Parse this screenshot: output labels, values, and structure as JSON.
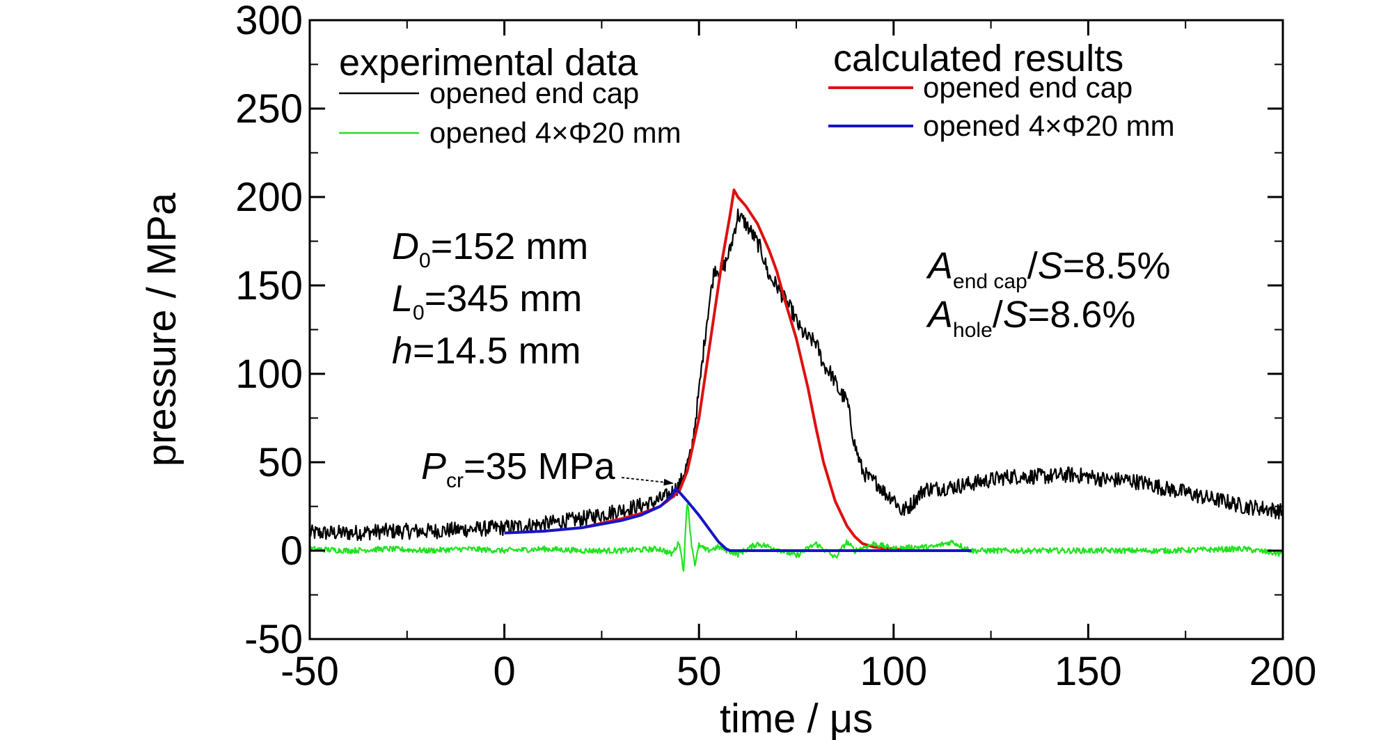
{
  "chart_data": {
    "type": "line",
    "xlabel": "time / μs",
    "ylabel": "pressure / MPa",
    "xlim": [
      -50,
      200
    ],
    "ylim": [
      -50,
      300
    ],
    "xticks": [
      -50,
      0,
      50,
      100,
      150,
      200
    ],
    "yticks": [
      -50,
      0,
      50,
      100,
      150,
      200,
      250,
      300
    ],
    "xtick_labels": [
      "-50",
      "0",
      "50",
      "100",
      "150",
      "200"
    ],
    "ytick_labels": [
      "-50",
      "0",
      "50",
      "100",
      "150",
      "200",
      "250",
      "300"
    ],
    "grid": false,
    "legend_groups": [
      {
        "heading": "experimental data",
        "entries": [
          "opened end cap",
          "opened 4×Φ20 mm"
        ]
      },
      {
        "heading": "calculated results",
        "entries": [
          "opened end cap",
          "opened 4×Φ20 mm"
        ]
      }
    ],
    "series": [
      {
        "name": "opened end cap",
        "group": "experimental data",
        "color": "#000000",
        "noisy": true,
        "x": [
          -50,
          -40,
          -30,
          -20,
          -10,
          0,
          10,
          20,
          30,
          38,
          42,
          45,
          48,
          50,
          52,
          54,
          56,
          58,
          59,
          60,
          62,
          64,
          66,
          68,
          70,
          72,
          74,
          76,
          78,
          80,
          82,
          84,
          86,
          88,
          90,
          92,
          94,
          96,
          98,
          100,
          102,
          104,
          106,
          108,
          110,
          115,
          120,
          125,
          130,
          135,
          140,
          145,
          150,
          155,
          160,
          165,
          170,
          175,
          180,
          185,
          190,
          195,
          200
        ],
        "y": [
          10,
          10,
          11,
          11,
          12,
          13,
          15,
          18,
          23,
          27,
          31,
          37,
          55,
          90,
          130,
          160,
          158,
          170,
          180,
          190,
          185,
          178,
          170,
          155,
          150,
          142,
          135,
          125,
          120,
          118,
          105,
          100,
          90,
          85,
          60,
          45,
          40,
          38,
          32,
          30,
          22,
          25,
          30,
          35,
          35,
          36,
          38,
          40,
          42,
          42,
          42,
          43,
          42,
          40,
          40,
          38,
          35,
          33,
          30,
          28,
          25,
          24,
          22
        ]
      },
      {
        "name": "opened 4×Φ20 mm",
        "group": "experimental data",
        "color": "#1fe31f",
        "noisy": true,
        "x": [
          -50,
          -40,
          -30,
          -20,
          -10,
          0,
          10,
          20,
          30,
          40,
          43,
          45,
          46,
          47,
          48,
          49,
          50,
          52,
          55,
          60,
          65,
          70,
          75,
          80,
          85,
          88,
          90,
          95,
          100,
          105,
          110,
          115,
          120,
          130,
          150,
          170,
          190,
          200
        ],
        "y": [
          1,
          0,
          1,
          0,
          1,
          0,
          1,
          0,
          0,
          1,
          -2,
          5,
          -12,
          30,
          5,
          -8,
          3,
          0,
          2,
          -2,
          4,
          1,
          -3,
          4,
          -4,
          5,
          0,
          4,
          1,
          2,
          2,
          5,
          0,
          0,
          0,
          0,
          1,
          -2
        ]
      },
      {
        "name": "opened end cap",
        "group": "calculated results",
        "color": "#dd1111",
        "noisy": false,
        "x": [
          0,
          10,
          20,
          30,
          35,
          40,
          43,
          45,
          47,
          50,
          53,
          56,
          58,
          59,
          60,
          62,
          65,
          68,
          70,
          72,
          75,
          78,
          80,
          82,
          85,
          88,
          90,
          92,
          95,
          100,
          105,
          110,
          115,
          120
        ],
        "y": [
          10,
          11,
          13,
          18,
          21,
          25,
          30,
          34,
          45,
          75,
          120,
          165,
          190,
          204,
          200,
          195,
          185,
          170,
          158,
          142,
          120,
          92,
          70,
          50,
          28,
          14,
          8,
          4,
          2,
          1,
          0,
          0,
          0,
          0
        ]
      },
      {
        "name": "opened 4×Φ20 mm",
        "group": "calculated results",
        "color": "#1515c8",
        "noisy": false,
        "x": [
          0,
          10,
          20,
          30,
          35,
          40,
          43,
          44,
          45,
          47,
          50,
          53,
          55,
          57,
          58,
          60,
          80,
          100,
          120
        ],
        "y": [
          10,
          11,
          13,
          17,
          20,
          25,
          31,
          35,
          33,
          28,
          20,
          11,
          5,
          1,
          0,
          0,
          0,
          0,
          0
        ]
      }
    ],
    "annotations": [
      {
        "label_main": "P",
        "label_sub": "cr",
        "label_rest": "=35 MPa",
        "arrow_to": {
          "x": 44,
          "y": 35
        }
      }
    ]
  },
  "params_left": [
    {
      "main": "D",
      "sub": "0",
      "rest": "=152 mm"
    },
    {
      "main": "L",
      "sub": "0",
      "rest": "=345 mm"
    },
    {
      "main": "h",
      "sub": "",
      "rest": "=14.5 mm"
    }
  ],
  "params_right": [
    {
      "main": "A",
      "sub": "end cap",
      "mid": "/",
      "main2": "S",
      "rest": "=8.5%"
    },
    {
      "main": "A",
      "sub": "hole",
      "mid": "/",
      "main2": "S",
      "rest": "=8.6%"
    }
  ]
}
